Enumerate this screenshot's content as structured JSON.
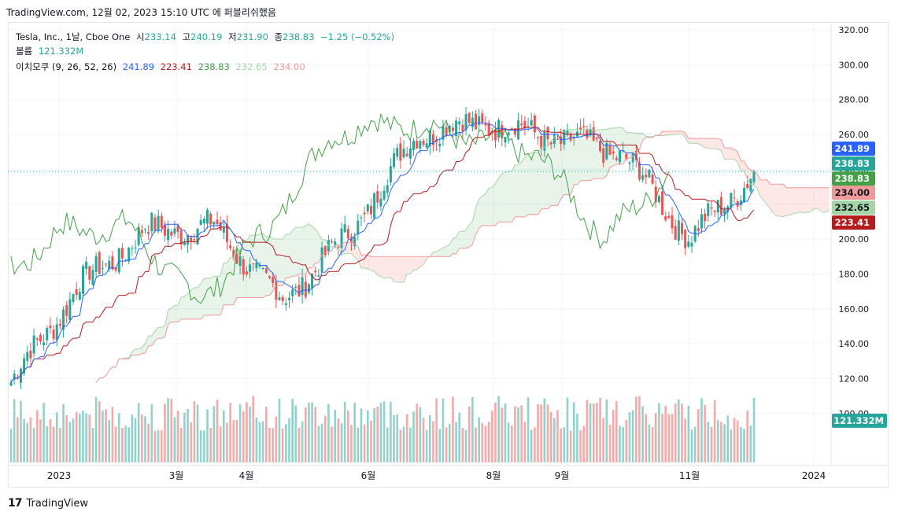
{
  "attribution": "TradingView.com, 12월 02, 2023 15:10 UTC 에 퍼블리쉬했음",
  "legend": {
    "symbol": "Tesla, Inc., 1날, Cboe One",
    "open_label": "시",
    "open": "233.14",
    "high_label": "고",
    "high": "240.19",
    "low_label": "저",
    "low": "231.90",
    "close_label": "종",
    "close": "238.83",
    "change": "−1.25 (−0.52%)",
    "volume_label": "볼륨",
    "volume": "121.332M",
    "ichimoku_label": "이치모쿠 (9, 26, 52, 26)",
    "ichimoku_values": [
      "241.89",
      "223.41",
      "238.83",
      "232.65",
      "234.00"
    ]
  },
  "footer": {
    "brand": "TradingView"
  },
  "colors": {
    "up": "#26a69a",
    "down": "#ef5350",
    "conversion": "#2962ff",
    "base": "#b71c1c",
    "lagging": "#43a047",
    "spanA": "#a5d6a7",
    "spanB": "#ef9a9a"
  },
  "chart_data": {
    "type": "candlestick",
    "title": "Tesla, Inc., 1날, Cboe One",
    "ylim": [
      90,
      320
    ],
    "y_ticks": [
      "320.00",
      "300.00",
      "280.00",
      "260.00",
      "240.00",
      "220.00",
      "200.00",
      "180.00",
      "160.00",
      "140.00",
      "120.00",
      "100.00"
    ],
    "x_ticks": [
      "2023",
      "3월",
      "4월",
      "6월",
      "8월",
      "9월",
      "11월",
      "2024"
    ],
    "price_labels": [
      {
        "text": "241.89",
        "value": 241.89,
        "series": "conversion"
      },
      {
        "text": "238.83",
        "value": 238.83,
        "series": "close"
      },
      {
        "text": "238.83",
        "value": 238.83,
        "series": "lagging"
      },
      {
        "text": "234.00",
        "value": 234.0,
        "series": "spanB"
      },
      {
        "text": "232.65",
        "value": 232.65,
        "series": "spanA"
      },
      {
        "text": "223.41",
        "value": 223.41,
        "series": "base"
      }
    ],
    "volume_label": "121.332M",
    "last_close": 238.83,
    "monthly_close": [
      {
        "month": "2023-01",
        "close": 173
      },
      {
        "month": "2023-02",
        "close": 205
      },
      {
        "month": "2023-03",
        "close": 207
      },
      {
        "month": "2023-04",
        "close": 164
      },
      {
        "month": "2023-05",
        "close": 204
      },
      {
        "month": "2023-06",
        "close": 261
      },
      {
        "month": "2023-07",
        "close": 267
      },
      {
        "month": "2023-08",
        "close": 258
      },
      {
        "month": "2023-09",
        "close": 250
      },
      {
        "month": "2023-10",
        "close": 200
      },
      {
        "month": "2023-11",
        "close": 240
      }
    ]
  }
}
